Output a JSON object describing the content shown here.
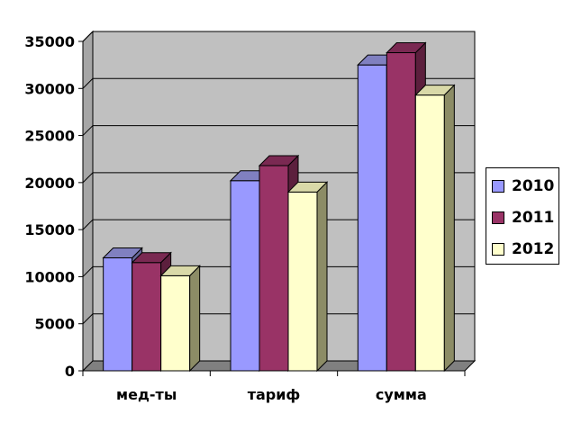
{
  "chart_data": {
    "type": "bar",
    "categories": [
      "мед-ты",
      "тариф",
      "сумма"
    ],
    "series": [
      {
        "name": "2010",
        "values": [
          12000,
          20200,
          32500
        ],
        "color": "#9999ff",
        "side": "#666699",
        "top": "#8080c0"
      },
      {
        "name": "2011",
        "values": [
          11500,
          21800,
          33800
        ],
        "color": "#993366",
        "side": "#5c1f3d",
        "top": "#7a2952"
      },
      {
        "name": "2012",
        "values": [
          10100,
          19000,
          29300
        ],
        "color": "#ffffcc",
        "side": "#8c8c66",
        "top": "#d9d9a8"
      }
    ],
    "yticks": [
      "0",
      "5000",
      "10000",
      "15000",
      "20000",
      "25000",
      "30000",
      "35000"
    ],
    "ylim": [
      0,
      35000
    ],
    "grid": true,
    "legend_position": "right",
    "wall_color": "#c0c0c0",
    "floor_color": "#808080"
  }
}
